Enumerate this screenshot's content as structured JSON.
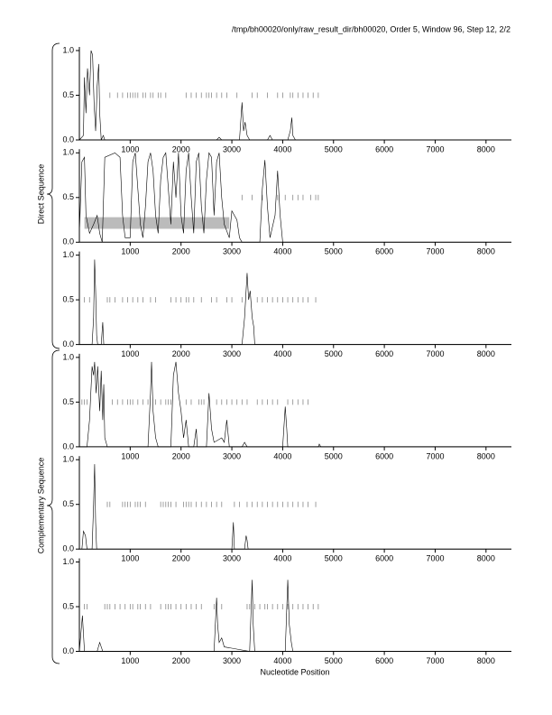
{
  "title": "/tmp/bh00020/only/raw_result_dir/bh00020, Order 5, Window 96, Step 12, 2/2",
  "x_label": "Nucleotide Position",
  "groups": [
    "Direct Sequence",
    "Complementary Sequence"
  ],
  "chart_data": [
    {
      "type": "line",
      "color": "#000000",
      "marker_color": "#888888",
      "xlim": [
        0,
        8500
      ],
      "ylim": [
        0,
        1
      ],
      "xticks": [
        1000,
        2000,
        3000,
        4000,
        5000,
        6000,
        7000,
        8000
      ],
      "yticks": [
        {
          "value": 0,
          "label": "0.0"
        },
        0.5,
        {
          "value": 1,
          "label": "1.0"
        }
      ],
      "x": [
        0,
        80,
        100,
        130,
        160,
        200,
        230,
        260,
        290,
        320,
        350,
        380,
        400,
        430,
        470,
        500,
        1000,
        2700,
        2750,
        2800,
        3150,
        3200,
        3230,
        3260,
        3300,
        3350,
        3700,
        3750,
        3800,
        4100,
        4150,
        4180,
        4200,
        4250,
        8500
      ],
      "values": [
        0,
        0.05,
        0.7,
        0.3,
        0.8,
        0.5,
        1.0,
        0.95,
        0.4,
        0.1,
        0.6,
        0.85,
        0.3,
        0,
        0.05,
        0,
        0,
        0,
        0.03,
        0,
        0,
        0.42,
        0.1,
        0.2,
        0.05,
        0,
        0,
        0.05,
        0,
        0,
        0.1,
        0.25,
        0.05,
        0,
        0
      ],
      "markers": [
        600,
        750,
        850,
        950,
        1000,
        1050,
        1100,
        1150,
        1250,
        1300,
        1400,
        1450,
        1550,
        1600,
        1700,
        2100,
        2200,
        2300,
        2400,
        2500,
        2550,
        2600,
        2700,
        2800,
        2900,
        3100,
        3400,
        3500,
        3700,
        3900,
        4000,
        4150,
        4200,
        4300,
        4400,
        4500,
        4600,
        4700
      ]
    },
    {
      "type": "line",
      "color": "#000000",
      "marker_color": "#888888",
      "xlim": [
        0,
        8500
      ],
      "ylim": [
        0,
        1
      ],
      "xticks": [
        1000,
        2000,
        3000,
        4000,
        5000,
        6000,
        7000,
        8000
      ],
      "yticks": [
        {
          "value": 0,
          "label": "0.0"
        },
        0.5,
        {
          "value": 1,
          "label": "1.0"
        }
      ],
      "highlight": {
        "x": [
          100,
          2950
        ],
        "y": [
          0.15,
          0.28
        ],
        "color": "#bbbbbb"
      },
      "x": [
        0,
        50,
        100,
        130,
        200,
        280,
        350,
        400,
        450,
        500,
        700,
        800,
        850,
        900,
        1000,
        1050,
        1100,
        1150,
        1200,
        1250,
        1300,
        1350,
        1400,
        1450,
        1500,
        1550,
        1600,
        1650,
        1700,
        1750,
        1800,
        1850,
        1900,
        1950,
        2000,
        2050,
        2100,
        2150,
        2200,
        2250,
        2300,
        2350,
        2400,
        2450,
        2500,
        2550,
        2600,
        2650,
        2700,
        2750,
        2800,
        2850,
        2950,
        3000,
        3050,
        3100,
        3150,
        3200,
        3550,
        3600,
        3650,
        3700,
        3750,
        3850,
        3900,
        3950,
        4000,
        8500
      ],
      "values": [
        0.1,
        0.9,
        0.95,
        0.3,
        0.1,
        0.2,
        0.3,
        0.1,
        0,
        0.95,
        1.0,
        0.95,
        0.3,
        0.05,
        0.05,
        0.9,
        1.0,
        0.6,
        0.2,
        0.05,
        0.4,
        0.9,
        1.0,
        0.8,
        0.3,
        0.1,
        0.7,
        0.95,
        1.0,
        0.6,
        0.2,
        0.9,
        0.5,
        1.0,
        0.3,
        0.1,
        0.8,
        1.0,
        0.5,
        0.1,
        0.9,
        1.0,
        0.4,
        0.1,
        0.7,
        1.0,
        0.95,
        0.3,
        0.9,
        1.0,
        0.5,
        0.2,
        0.05,
        0.35,
        0.3,
        0.25,
        0.05,
        0,
        0,
        0.6,
        0.92,
        0.4,
        0.05,
        0.3,
        0.8,
        0.3,
        0,
        0
      ],
      "markers": [
        3200,
        3400,
        3600,
        3900,
        4050,
        4200,
        4300,
        4400,
        4550,
        4650,
        4700
      ]
    },
    {
      "type": "line",
      "color": "#000000",
      "marker_color": "#888888",
      "xlim": [
        0,
        8500
      ],
      "ylim": [
        0,
        1
      ],
      "xticks": [
        1000,
        2000,
        3000,
        4000,
        5000,
        6000,
        7000,
        8000
      ],
      "yticks": [
        {
          "value": 0,
          "label": "0.0"
        },
        0.5,
        {
          "value": 1,
          "label": "1.0"
        }
      ],
      "x": [
        0,
        250,
        280,
        300,
        320,
        340,
        360,
        430,
        460,
        480,
        3200,
        3250,
        3300,
        3330,
        3360,
        3400,
        3430,
        3450,
        8500
      ],
      "values": [
        0,
        0,
        0.3,
        0.95,
        0.6,
        0.1,
        0,
        0,
        0.25,
        0,
        0,
        0.3,
        0.8,
        0.5,
        0.6,
        0.3,
        0.2,
        0,
        0
      ],
      "markers": [
        100,
        200,
        550,
        600,
        700,
        850,
        950,
        1050,
        1150,
        1250,
        1400,
        1500,
        1800,
        1900,
        2000,
        2100,
        2150,
        2250,
        2400,
        2600,
        2700,
        2900,
        3000,
        3200,
        3500,
        3600,
        3700,
        3800,
        3900,
        4000,
        4100,
        4200,
        4300,
        4400,
        4500,
        4650
      ]
    },
    {
      "type": "line",
      "color": "#000000",
      "marker_color": "#888888",
      "xlim": [
        0,
        8500
      ],
      "ylim": [
        0,
        1
      ],
      "xticks": [
        1000,
        2000,
        3000,
        4000,
        5000,
        6000,
        7000,
        8000
      ],
      "yticks": [
        {
          "value": 0,
          "label": "0.0"
        },
        0.5,
        {
          "value": 1,
          "label": "1.0"
        }
      ],
      "x": [
        0,
        150,
        200,
        250,
        280,
        300,
        330,
        360,
        400,
        430,
        460,
        480,
        500,
        550,
        1350,
        1400,
        1420,
        1450,
        1500,
        1550,
        1800,
        1850,
        1900,
        1950,
        2000,
        2050,
        2100,
        2150,
        2250,
        2300,
        2320,
        2500,
        2550,
        2600,
        2650,
        2800,
        2850,
        2900,
        2950,
        3200,
        3250,
        3300,
        4000,
        4050,
        4080,
        4100,
        4700,
        4720,
        4750,
        8500
      ],
      "values": [
        0,
        0,
        0.3,
        0.9,
        0.8,
        0.95,
        0.6,
        0.9,
        0.4,
        0.85,
        0.3,
        0.7,
        0.1,
        0,
        0,
        0.6,
        0.95,
        0.4,
        0.1,
        0,
        0,
        0.8,
        0.95,
        0.6,
        0.4,
        0.1,
        0.3,
        0,
        0,
        0.2,
        0,
        0,
        0.6,
        0.2,
        0.05,
        0.1,
        0.05,
        0.3,
        0,
        0,
        0.05,
        0,
        0,
        0.45,
        0.2,
        0,
        0,
        0.03,
        0,
        0
      ],
      "markers": [
        50,
        100,
        150,
        650,
        750,
        850,
        950,
        1000,
        1050,
        1150,
        1250,
        1350,
        1500,
        1600,
        1700,
        1750,
        1800,
        2100,
        2200,
        2350,
        2400,
        2450,
        2700,
        2800,
        2900,
        3000,
        3100,
        3200,
        3300,
        3500,
        3600,
        3700,
        3800,
        3900,
        4100,
        4200,
        4300,
        4400,
        4500
      ]
    },
    {
      "type": "line",
      "color": "#000000",
      "marker_color": "#888888",
      "xlim": [
        0,
        8500
      ],
      "ylim": [
        0,
        1
      ],
      "xticks": [
        1000,
        2000,
        3000,
        4000,
        5000,
        6000,
        7000,
        8000
      ],
      "yticks": [
        {
          "value": 0,
          "label": "0.0"
        },
        0.5,
        {
          "value": 1,
          "label": "1.0"
        }
      ],
      "x": [
        0,
        50,
        80,
        120,
        150,
        250,
        280,
        300,
        320,
        340,
        3000,
        3030,
        3050,
        3250,
        3280,
        3300,
        3320,
        8500
      ],
      "values": [
        0,
        0,
        0.2,
        0.15,
        0,
        0,
        0.5,
        0.95,
        0.3,
        0,
        0,
        0.3,
        0,
        0,
        0.15,
        0.1,
        0,
        0
      ],
      "markers": [
        550,
        600,
        850,
        900,
        950,
        1000,
        1100,
        1150,
        1200,
        1300,
        1600,
        1650,
        1700,
        1750,
        1800,
        1900,
        2050,
        2100,
        2150,
        2200,
        2300,
        2400,
        2500,
        2600,
        2700,
        2800,
        3050,
        3150,
        3300,
        3400,
        3500,
        3600,
        3700,
        3800,
        3900,
        4000,
        4100,
        4200,
        4300,
        4400,
        4500,
        4650
      ]
    },
    {
      "type": "line",
      "color": "#000000",
      "marker_color": "#888888",
      "xlim": [
        0,
        8500
      ],
      "ylim": [
        0,
        1
      ],
      "xticks": [
        1000,
        2000,
        3000,
        4000,
        5000,
        6000,
        7000,
        8000
      ],
      "yticks": [
        {
          "value": 0,
          "label": "0.0"
        },
        0.5,
        {
          "value": 1,
          "label": "1.0"
        }
      ],
      "x": [
        0,
        60,
        100,
        350,
        400,
        430,
        460,
        2650,
        2700,
        2720,
        2750,
        2800,
        2850,
        3350,
        3400,
        3420,
        3450,
        4050,
        4100,
        4130,
        4170,
        4200,
        8500
      ],
      "values": [
        0,
        0.4,
        0,
        0,
        0.1,
        0.05,
        0,
        0,
        0.6,
        0.3,
        0.1,
        0.15,
        0.05,
        0,
        0.8,
        0.3,
        0,
        0,
        0.8,
        0.3,
        0.1,
        0,
        0
      ],
      "markers": [
        100,
        150,
        500,
        550,
        600,
        700,
        800,
        900,
        1000,
        1050,
        1150,
        1200,
        1300,
        1400,
        1600,
        1700,
        1750,
        1800,
        1900,
        2000,
        2100,
        2200,
        2300,
        2400,
        2650,
        2800,
        3300,
        3350,
        3450,
        3550,
        3650,
        3700,
        3800,
        3900,
        4000,
        4100,
        4200,
        4300,
        4400,
        4500,
        4600,
        4700
      ]
    }
  ]
}
